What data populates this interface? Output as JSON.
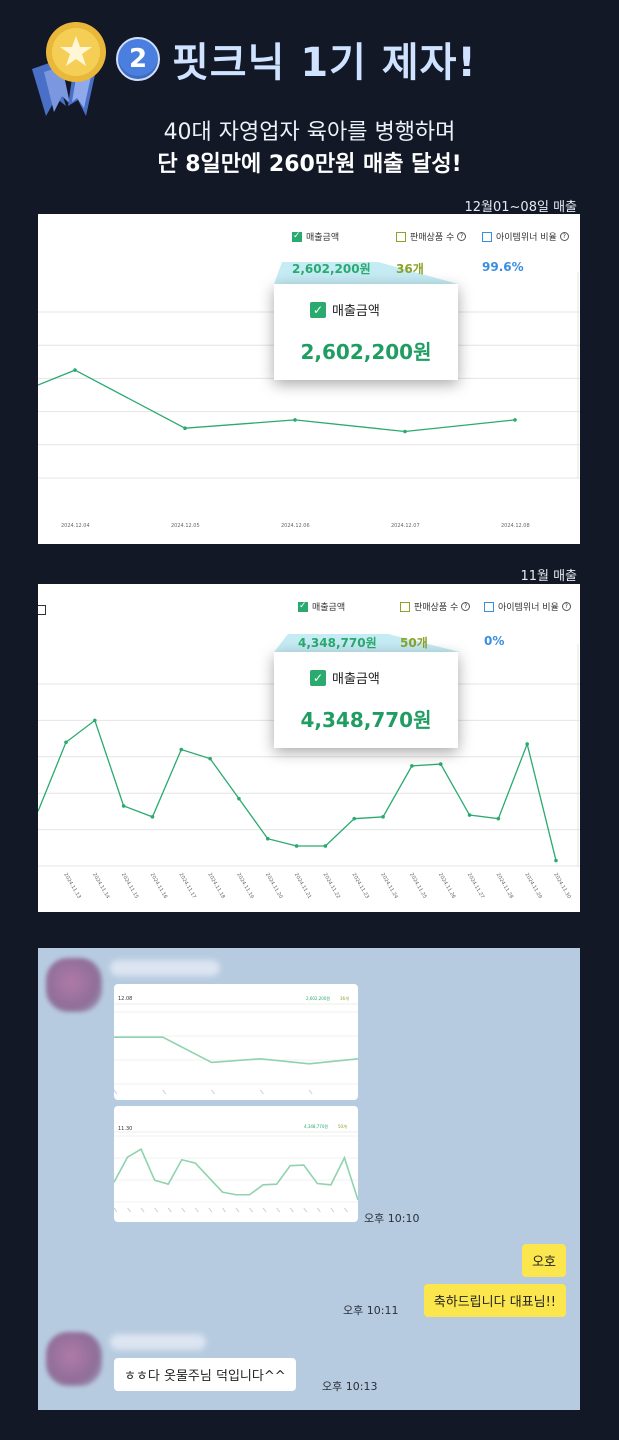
{
  "header": {
    "badge_number": "2",
    "title": "핏크닉 1기 제자!",
    "subtitle_line1": "40대 자영업자 육아를 병행하며",
    "subtitle_line2": "단 8일만에 260만원 매출 달성!"
  },
  "panel1": {
    "caption": "12월01~08일 매출",
    "legend": {
      "sales_label": "매출금액",
      "items_label": "판매상품 수",
      "winner_label": "아이템위너 비율"
    },
    "sales_value": "2,602,200원",
    "items_value": "36개",
    "winner_value": "99.6%",
    "zoom_label": "매출금액",
    "zoom_value": "2,602,200원"
  },
  "panel2": {
    "caption": "11월 매출",
    "legend": {
      "sales_label": "매출금액",
      "items_label": "판매상품 수",
      "winner_label": "아이템위너 비율"
    },
    "sales_value": "4,348,770원",
    "items_value": "50개",
    "winner_value": "0%",
    "zoom_label": "매출금액",
    "zoom_value": "4,348,770원"
  },
  "chart_data": [
    {
      "type": "line",
      "x": [
        "2024.12.04",
        "2024.12.05",
        "2024.12.06",
        "2024.12.07",
        "2024.12.08"
      ],
      "series": [
        {
          "values": [
            0.35,
            0.7,
            0.65,
            0.72,
            0.65
          ],
          "extra_start": 0.44,
          "extra_start_x": -0.35
        }
      ]
    },
    {
      "type": "line",
      "x": [
        "2024.11.13",
        "2024.11.14",
        "2024.11.15",
        "2024.11.16",
        "2024.11.17",
        "2024.11.18",
        "2024.11.19",
        "2024.11.20",
        "2024.11.21",
        "2024.11.22",
        "2024.11.23",
        "2024.11.24",
        "2024.11.25",
        "2024.11.26",
        "2024.11.27",
        "2024.11.28",
        "2024.11.29",
        "2024.11.30"
      ],
      "series": [
        {
          "values": [
            0.32,
            0.2,
            0.67,
            0.73,
            0.36,
            0.41,
            0.63,
            0.85,
            0.89,
            0.89,
            0.74,
            0.73,
            0.45,
            0.44,
            0.72,
            0.74,
            0.33,
            0.97
          ],
          "extra_start": 0.7
        }
      ]
    }
  ],
  "chat": {
    "time1": "오후 10:10",
    "msg_oho": "오호",
    "msg_congrats": "축하드립니다 대표님!!",
    "time2": "오후 10:11",
    "msg_reply": "ㅎㅎ다 옷물주님 덕입니다^^",
    "time3": "오후 10:13",
    "thumb1_header": "12.08",
    "thumb1_val1": "2,602,200원",
    "thumb1_val2": "36개",
    "thumb2_header": "11.30",
    "thumb2_val1": "4,348,770원",
    "thumb2_val2": "50개"
  },
  "colors": {
    "line": "#2aaa6e",
    "sales": "#2aaa6e",
    "items": "#8aa32a",
    "winner": "#3a8ee0",
    "background": "#121826",
    "chat_bg": "#b7cbe0"
  }
}
